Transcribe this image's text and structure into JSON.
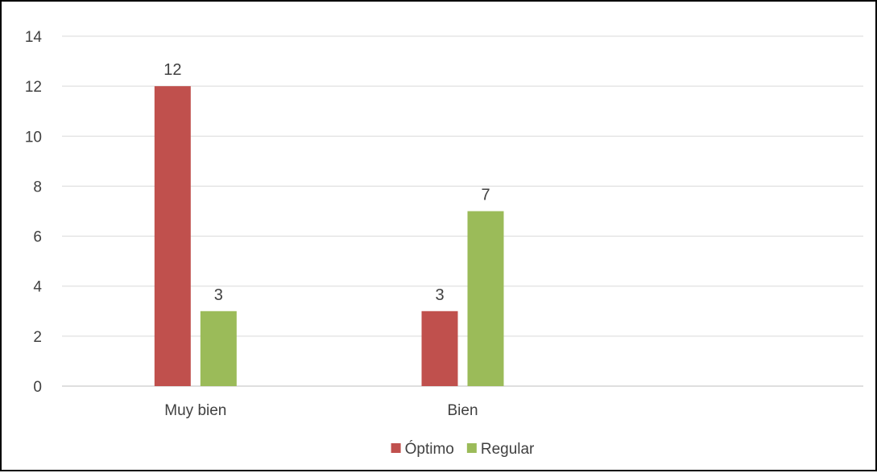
{
  "chart_data": {
    "type": "bar",
    "categories": [
      "Muy bien",
      "Bien",
      ""
    ],
    "series": [
      {
        "name": "Óptimo",
        "color": "#c0504d",
        "values": [
          12,
          3,
          null
        ]
      },
      {
        "name": "Regular",
        "color": "#9bbb59",
        "values": [
          3,
          7,
          null
        ]
      }
    ],
    "ylim": [
      0,
      14
    ],
    "yticks": [
      0,
      2,
      4,
      6,
      8,
      10,
      12,
      14
    ],
    "grid": true,
    "legend_position": "bottom",
    "data_labels": true
  }
}
